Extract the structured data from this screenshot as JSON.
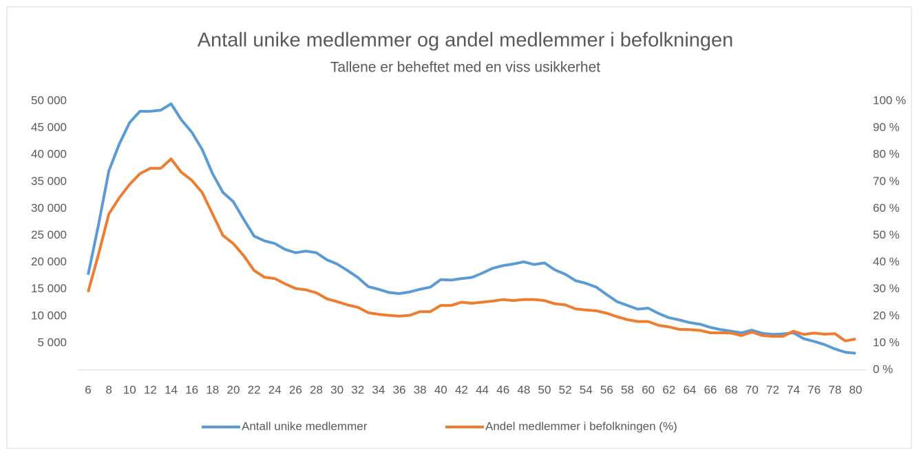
{
  "chart_data": {
    "type": "line",
    "title": "Antall unike medlemmer og andel medlemmer i befolkningen",
    "subtitle": "Tallene er beheftet med en viss usikkerhet",
    "categories": [
      6,
      null,
      8,
      null,
      10,
      null,
      12,
      null,
      14,
      null,
      16,
      null,
      18,
      null,
      20,
      null,
      22,
      null,
      24,
      null,
      26,
      null,
      28,
      null,
      30,
      null,
      32,
      null,
      34,
      null,
      36,
      null,
      38,
      null,
      40,
      null,
      42,
      null,
      44,
      null,
      46,
      null,
      48,
      null,
      50,
      null,
      52,
      null,
      54,
      null,
      56,
      null,
      58,
      null,
      60,
      null,
      62,
      null,
      64,
      null,
      66,
      null,
      68,
      null,
      70,
      null,
      72,
      null,
      74,
      null,
      76,
      null,
      78,
      null,
      80
    ],
    "ylim": [
      0,
      50000
    ],
    "yticks": [
      {
        "value": 5000,
        "label": "5 000"
      },
      {
        "value": 10000,
        "label": "10 000"
      },
      {
        "value": 15000,
        "label": "15 000"
      },
      {
        "value": 20000,
        "label": "20 000"
      },
      {
        "value": 25000,
        "label": "25 000"
      },
      {
        "value": 30000,
        "label": "30 000"
      },
      {
        "value": 35000,
        "label": "35 000"
      },
      {
        "value": 40000,
        "label": "40 000"
      },
      {
        "value": 45000,
        "label": "45 000"
      },
      {
        "value": 50000,
        "label": "50 000"
      }
    ],
    "y2lim": [
      0,
      100
    ],
    "y2ticks": [
      {
        "value": 0,
        "label": "0 %"
      },
      {
        "value": 10,
        "label": "10 %"
      },
      {
        "value": 20,
        "label": "20 %"
      },
      {
        "value": 30,
        "label": "30 %"
      },
      {
        "value": 40,
        "label": "40 %"
      },
      {
        "value": 50,
        "label": "50 %"
      },
      {
        "value": 60,
        "label": "60 %"
      },
      {
        "value": 70,
        "label": "70 %"
      },
      {
        "value": 80,
        "label": "80 %"
      },
      {
        "value": 90,
        "label": "90 %"
      },
      {
        "value": 100,
        "label": "100 %"
      }
    ],
    "legend": "bottom",
    "series": [
      {
        "name": "Antall unike medlemmer",
        "color": "#5b9bd5",
        "values": [
          17700,
          27000,
          37000,
          42000,
          46000,
          48100,
          48100,
          48300,
          49500,
          46500,
          44200,
          41000,
          36500,
          33000,
          31300,
          28000,
          24900,
          24000,
          23500,
          22400,
          21800,
          22100,
          21800,
          20500,
          19700,
          18500,
          17200,
          15500,
          15000,
          14400,
          14200,
          14500,
          15000,
          15400,
          16800,
          16700,
          17000,
          17200,
          18000,
          18900,
          19400,
          19700,
          20100,
          19600,
          19900,
          18600,
          17800,
          16600,
          16100,
          15400,
          14000,
          12700,
          12000,
          11300,
          11500,
          10500,
          9700,
          9300,
          8800,
          8500,
          7900,
          7500,
          7200,
          6900,
          7400,
          6800,
          6600,
          6700,
          6900,
          5800,
          5300,
          4700,
          3900,
          3300,
          3100
        ]
      },
      {
        "name": "Andel medlemmer i befolkningen (%)",
        "color": "#ed7d31",
        "axis": "y2",
        "values": [
          29,
          43,
          58,
          64,
          69,
          73,
          75,
          75,
          78.5,
          73.5,
          70.5,
          66,
          58,
          50,
          47,
          42.5,
          37,
          34.5,
          34,
          32,
          30.3,
          29.8,
          28.7,
          26.5,
          25.4,
          24.2,
          23.3,
          21.3,
          20.7,
          20.3,
          20,
          20.3,
          21.7,
          21.7,
          24,
          24,
          25.2,
          24.8,
          25.2,
          25.6,
          26.2,
          25.8,
          26.2,
          26.2,
          25.8,
          24.6,
          24.2,
          22.7,
          22.3,
          22,
          21.1,
          19.8,
          18.7,
          18,
          18,
          16.6,
          16,
          15.1,
          15,
          14.7,
          13.8,
          13.8,
          13.7,
          12.8,
          14.1,
          12.8,
          12.5,
          12.5,
          14.4,
          13.2,
          13.7,
          13.3,
          13.5,
          10.8,
          11.5
        ]
      }
    ]
  }
}
